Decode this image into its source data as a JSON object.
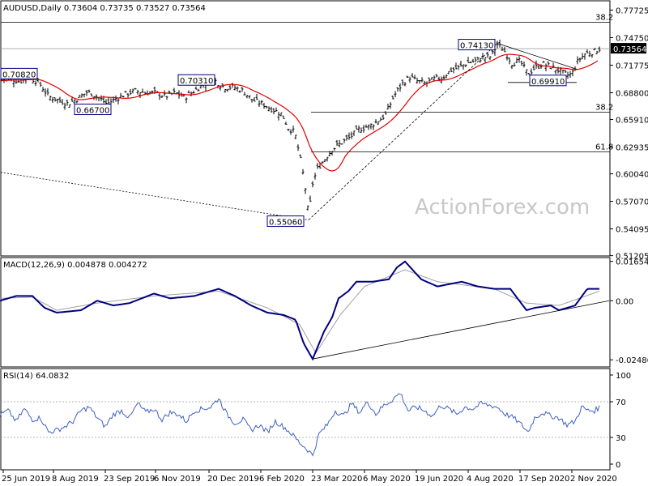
{
  "chart_data": [
    {
      "type": "candlestick",
      "symbol_line": "AUDUSD,Daily  0.73604 0.73735 0.73527 0.73564",
      "last_price_label": "0.73564",
      "ylim": [
        0.5126,
        0.7864
      ],
      "y_ticks": [
        0.77725,
        0.7475,
        0.71775,
        0.688,
        0.6591,
        0.62935,
        0.6004,
        0.5707,
        0.54095,
        0.51205
      ],
      "y_tick_labels": [
        "0.77725",
        "0.74750",
        "0.71775",
        "0.68800",
        "0.65910",
        "0.62935",
        "0.60040",
        "0.57070",
        "0.54095",
        "0.51205"
      ],
      "price_path": [
        [
          0,
          0.701
        ],
        [
          12,
          0.704
        ],
        [
          24,
          0.7
        ],
        [
          36,
          0.705
        ],
        [
          48,
          0.699
        ],
        [
          60,
          0.684
        ],
        [
          72,
          0.68
        ],
        [
          84,
          0.676
        ],
        [
          96,
          0.682
        ],
        [
          108,
          0.689
        ],
        [
          120,
          0.684
        ],
        [
          132,
          0.676
        ],
        [
          144,
          0.682
        ],
        [
          156,
          0.687
        ],
        [
          168,
          0.69
        ],
        [
          180,
          0.688
        ],
        [
          192,
          0.688
        ],
        [
          204,
          0.684
        ],
        [
          216,
          0.688
        ],
        [
          228,
          0.683
        ],
        [
          240,
          0.69
        ],
        [
          252,
          0.698
        ],
        [
          264,
          0.702
        ],
        [
          276,
          0.694
        ],
        [
          288,
          0.694
        ],
        [
          300,
          0.69
        ],
        [
          312,
          0.68
        ],
        [
          324,
          0.676
        ],
        [
          336,
          0.67
        ],
        [
          348,
          0.665
        ],
        [
          356,
          0.65
        ],
        [
          364,
          0.645
        ],
        [
          370,
          0.62
        ],
        [
          376,
          0.592
        ],
        [
          381,
          0.555
        ],
        [
          386,
          0.59
        ],
        [
          392,
          0.606
        ],
        [
          400,
          0.615
        ],
        [
          410,
          0.627
        ],
        [
          420,
          0.633
        ],
        [
          432,
          0.64
        ],
        [
          444,
          0.649
        ],
        [
          456,
          0.652
        ],
        [
          466,
          0.657
        ],
        [
          476,
          0.664
        ],
        [
          486,
          0.684
        ],
        [
          496,
          0.697
        ],
        [
          506,
          0.705
        ],
        [
          516,
          0.7
        ],
        [
          526,
          0.698
        ],
        [
          536,
          0.703
        ],
        [
          546,
          0.704
        ],
        [
          556,
          0.712
        ],
        [
          566,
          0.715
        ],
        [
          576,
          0.72
        ],
        [
          586,
          0.722
        ],
        [
          596,
          0.726
        ],
        [
          606,
          0.727
        ],
        [
          614,
          0.74
        ],
        [
          622,
          0.734
        ],
        [
          632,
          0.72
        ],
        [
          642,
          0.722
        ],
        [
          652,
          0.708
        ],
        [
          660,
          0.715
        ],
        [
          670,
          0.719
        ],
        [
          680,
          0.716
        ],
        [
          690,
          0.712
        ],
        [
          700,
          0.707
        ],
        [
          706,
          0.708
        ],
        [
          714,
          0.723
        ],
        [
          722,
          0.73
        ],
        [
          732,
          0.732
        ],
        [
          740,
          0.7356
        ]
      ],
      "ma_line_color": "#e00000",
      "candle_color": "#000000",
      "levels": {
        "retracement_top": 0.764,
        "retracement_top_label": "38.2",
        "level_upper": 0.7356,
        "retracement_mid": 0.667,
        "retracement_mid_label": "38.2",
        "retracement_low": 0.624,
        "retracement_low_label": "61.8"
      },
      "annotations": [
        {
          "text": "0.70820",
          "value": 0.7082
        },
        {
          "text": "0.66700",
          "value": 0.667
        },
        {
          "text": "0.70310",
          "value": 0.7031
        },
        {
          "text": "0.55060",
          "value": 0.5506
        },
        {
          "text": "0.74130",
          "value": 0.7413
        },
        {
          "text": "0.69910",
          "value": 0.6991
        }
      ],
      "watermark": "ActionForex.com"
    },
    {
      "type": "line",
      "title": "MACD(12,26,9) 0.004878 0.004272",
      "ylim": [
        -0.0275,
        0.0178
      ],
      "y_ticks": [
        0.01654,
        0.0,
        -0.02486
      ],
      "y_tick_labels": [
        "0.01654",
        "0.00",
        "-0.02486"
      ],
      "series": [
        {
          "color": "#000080",
          "values": [
            [
              0,
              0.0
            ],
            [
              20,
              0.002
            ],
            [
              40,
              0.002
            ],
            [
              55,
              -0.003
            ],
            [
              70,
              -0.005
            ],
            [
              100,
              -0.004
            ],
            [
              120,
              0.0
            ],
            [
              140,
              -0.002
            ],
            [
              160,
              -0.001
            ],
            [
              190,
              0.003
            ],
            [
              210,
              0.001
            ],
            [
              240,
              0.002
            ],
            [
              270,
              0.005
            ],
            [
              290,
              0.002
            ],
            [
              310,
              -0.002
            ],
            [
              330,
              -0.005
            ],
            [
              350,
              -0.006
            ],
            [
              365,
              -0.008
            ],
            [
              375,
              -0.018
            ],
            [
              386,
              -0.0245
            ],
            [
              400,
              -0.013
            ],
            [
              410,
              -0.007
            ],
            [
              418,
              0.001
            ],
            [
              430,
              0.004
            ],
            [
              440,
              0.008
            ],
            [
              460,
              0.008
            ],
            [
              480,
              0.009
            ],
            [
              490,
              0.014
            ],
            [
              500,
              0.0165
            ],
            [
              520,
              0.009
            ],
            [
              540,
              0.006
            ],
            [
              570,
              0.008
            ],
            [
              590,
              0.006
            ],
            [
              610,
              0.005
            ],
            [
              630,
              0.005
            ],
            [
              650,
              -0.004
            ],
            [
              660,
              -0.003
            ],
            [
              680,
              -0.002
            ],
            [
              690,
              -0.004
            ],
            [
              710,
              -0.002
            ],
            [
              725,
              0.005
            ],
            [
              740,
              0.005
            ]
          ]
        },
        {
          "color": "#a0a0a0",
          "values": [
            [
              0,
              0.001
            ],
            [
              40,
              0.0015
            ],
            [
              70,
              -0.004
            ],
            [
              120,
              -0.001
            ],
            [
              190,
              0.002
            ],
            [
              270,
              0.004
            ],
            [
              330,
              -0.003
            ],
            [
              370,
              -0.01
            ],
            [
              390,
              -0.022
            ],
            [
              420,
              -0.006
            ],
            [
              450,
              0.006
            ],
            [
              500,
              0.013
            ],
            [
              540,
              0.008
            ],
            [
              610,
              0.005
            ],
            [
              650,
              -0.001
            ],
            [
              690,
              -0.002
            ],
            [
              740,
              0.004
            ]
          ]
        }
      ]
    },
    {
      "type": "line",
      "title": "RSI(14) 64.0832",
      "ylim": [
        0,
        100
      ],
      "y_ticks": [
        100,
        70,
        30,
        0
      ],
      "y_tick_labels": [
        "100",
        "70",
        "30",
        "0"
      ],
      "series": [
        {
          "color": "#4060c0",
          "values": [
            [
              0,
              55
            ],
            [
              10,
              60
            ],
            [
              20,
              48
            ],
            [
              30,
              62
            ],
            [
              40,
              50
            ],
            [
              50,
              52
            ],
            [
              60,
              36
            ],
            [
              70,
              38
            ],
            [
              80,
              42
            ],
            [
              90,
              48
            ],
            [
              100,
              60
            ],
            [
              110,
              64
            ],
            [
              120,
              52
            ],
            [
              130,
              42
            ],
            [
              140,
              56
            ],
            [
              150,
              60
            ],
            [
              160,
              52
            ],
            [
              170,
              68
            ],
            [
              180,
              58
            ],
            [
              190,
              62
            ],
            [
              200,
              50
            ],
            [
              210,
              58
            ],
            [
              220,
              56
            ],
            [
              230,
              48
            ],
            [
              240,
              60
            ],
            [
              250,
              62
            ],
            [
              260,
              64
            ],
            [
              270,
              74
            ],
            [
              280,
              56
            ],
            [
              290,
              46
            ],
            [
              300,
              50
            ],
            [
              310,
              38
            ],
            [
              320,
              44
            ],
            [
              330,
              36
            ],
            [
              340,
              48
            ],
            [
              350,
              42
            ],
            [
              360,
              34
            ],
            [
              370,
              24
            ],
            [
              380,
              16
            ],
            [
              386,
              10
            ],
            [
              394,
              34
            ],
            [
              404,
              44
            ],
            [
              414,
              60
            ],
            [
              424,
              54
            ],
            [
              434,
              68
            ],
            [
              444,
              58
            ],
            [
              454,
              70
            ],
            [
              464,
              56
            ],
            [
              474,
              66
            ],
            [
              484,
              72
            ],
            [
              494,
              80
            ],
            [
              504,
              60
            ],
            [
              514,
              64
            ],
            [
              524,
              60
            ],
            [
              534,
              54
            ],
            [
              544,
              66
            ],
            [
              554,
              62
            ],
            [
              564,
              56
            ],
            [
              574,
              64
            ],
            [
              584,
              62
            ],
            [
              594,
              68
            ],
            [
              604,
              66
            ],
            [
              614,
              64
            ],
            [
              624,
              56
            ],
            [
              634,
              52
            ],
            [
              644,
              44
            ],
            [
              652,
              36
            ],
            [
              660,
              52
            ],
            [
              670,
              58
            ],
            [
              680,
              54
            ],
            [
              690,
              52
            ],
            [
              700,
              44
            ],
            [
              710,
              48
            ],
            [
              718,
              64
            ],
            [
              726,
              60
            ],
            [
              734,
              60
            ],
            [
              740,
              64
            ]
          ]
        }
      ],
      "level_lines": [
        70,
        30
      ]
    }
  ],
  "x_axis": {
    "labels": [
      "25 Jun 2019",
      "8 Aug 2019",
      "23 Sep 2019",
      "6 Nov 2019",
      "20 Dec 2019",
      "6 Feb 2020",
      "23 Mar 2020",
      "6 May 2020",
      "19 Jun 2020",
      "4 Aug 2020",
      "17 Sep 2020",
      "2 Nov 2020"
    ]
  }
}
